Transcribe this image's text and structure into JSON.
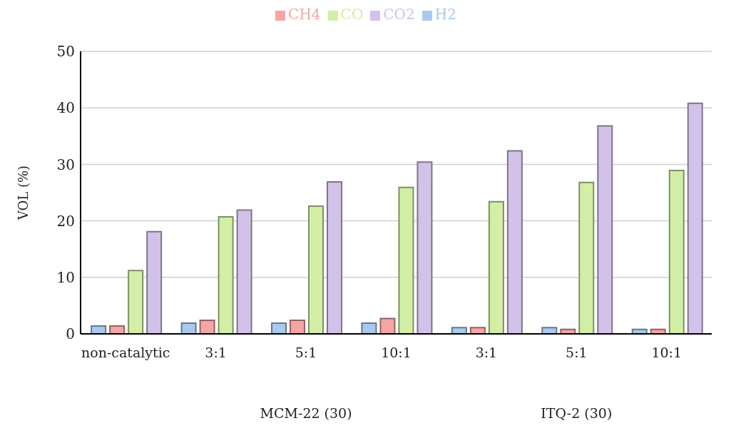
{
  "chart_data": {
    "type": "bar",
    "ylabel": "VOL (%)",
    "categories": [
      "non-catalytic",
      "3:1",
      "5:1",
      "10:1",
      "3:1",
      "5:1",
      "10:1"
    ],
    "series": [
      {
        "name": "H2",
        "color": "#a9c9ef",
        "values": [
          1.4,
          1.9,
          1.9,
          1.9,
          1.1,
          1.1,
          0.8
        ]
      },
      {
        "name": "CH4",
        "color": "#f5a5a5",
        "values": [
          1.4,
          2.4,
          2.4,
          2.7,
          1.1,
          0.8,
          0.8
        ]
      },
      {
        "name": "CO",
        "color": "#d3efa6",
        "values": [
          11.2,
          20.7,
          22.6,
          25.9,
          23.4,
          26.8,
          28.9
        ]
      },
      {
        "name": "CO2",
        "color": "#d2c2ea",
        "values": [
          18.1,
          21.9,
          26.9,
          30.4,
          32.4,
          36.8,
          40.8
        ]
      }
    ],
    "annotations": [
      "MCM-22 (30)",
      "ITQ-2 (30)"
    ],
    "ylim": [
      0,
      50
    ],
    "yticks": [
      0,
      10,
      20,
      30,
      40,
      50
    ],
    "grid": "y",
    "legend": "top"
  }
}
